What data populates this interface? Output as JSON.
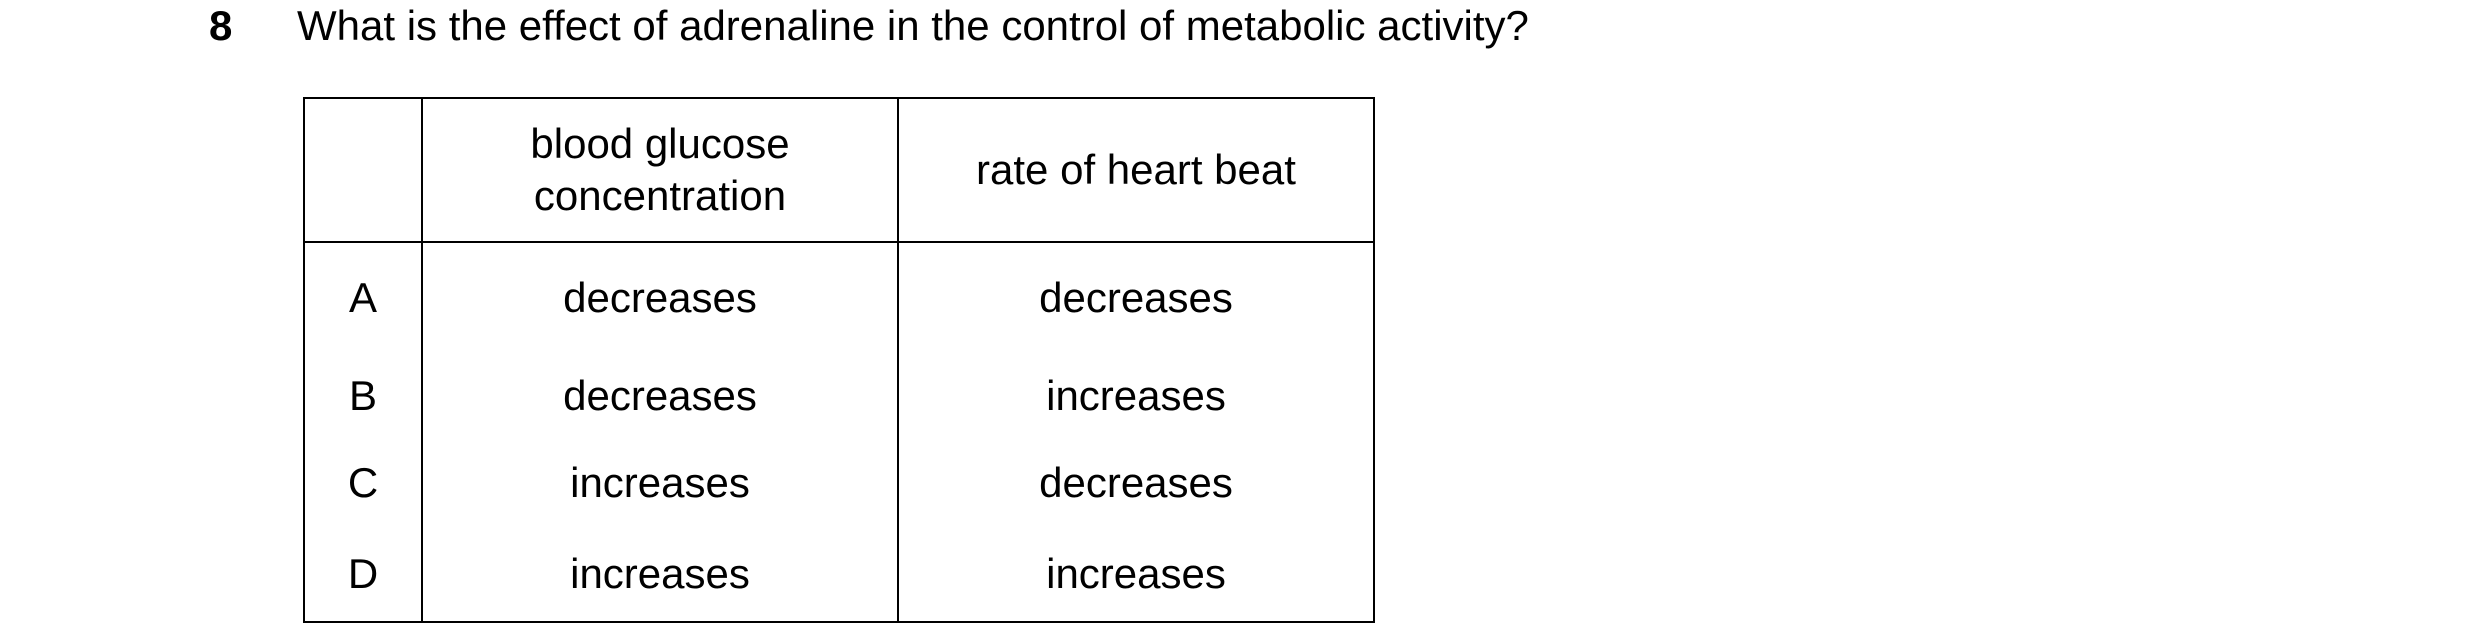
{
  "question": {
    "number": "8",
    "text": "What is the effect of adrenaline in the control of metabolic activity?"
  },
  "table": {
    "headers": [
      "",
      "blood glucose\nconcentration",
      "rate of heart beat"
    ],
    "header_glucose_line1": "blood glucose",
    "header_glucose_line2": "concentration",
    "header_heart": "rate of heart beat",
    "rows": [
      {
        "letter": "A",
        "glucose": "decreases",
        "heart": "decreases"
      },
      {
        "letter": "B",
        "glucose": "decreases",
        "heart": "increases"
      },
      {
        "letter": "C",
        "glucose": "increases",
        "heart": "decreases"
      },
      {
        "letter": "D",
        "glucose": "increases",
        "heart": "increases"
      }
    ]
  }
}
